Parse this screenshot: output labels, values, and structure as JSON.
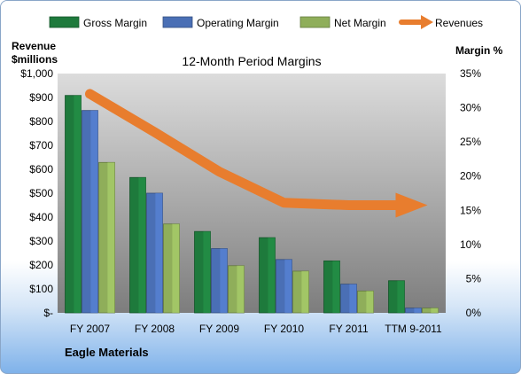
{
  "chart_data": {
    "type": "bar",
    "title": "12-Month Period Margins",
    "left_axis_label": [
      "Revenue",
      "$millions"
    ],
    "right_axis_label": "Margin %",
    "categories": [
      "FY 2007",
      "FY 2008",
      "FY 2009",
      "FY 2010",
      "FY 2011",
      "TTM 9-2011"
    ],
    "left_ticks": [
      "$-",
      "$100",
      "$200",
      "$300",
      "$400",
      "$500",
      "$600",
      "$700",
      "$800",
      "$900",
      "$1,000"
    ],
    "right_ticks": [
      "0%",
      "5%",
      "10%",
      "15%",
      "20%",
      "25%",
      "30%",
      "35%"
    ],
    "left_ylim": [
      0,
      1000
    ],
    "right_ylim": [
      0,
      35
    ],
    "grid": false,
    "legend_position": "top",
    "series": [
      {
        "name": "Gross Margin",
        "axis": "right",
        "kind": "bar",
        "color": "#1e7a3c",
        "values": [
          31.8,
          19.8,
          11.9,
          11.0,
          7.6,
          4.7
        ]
      },
      {
        "name": "Operating Margin",
        "axis": "right",
        "kind": "bar",
        "color": "#4a6fb5",
        "values": [
          29.6,
          17.5,
          9.4,
          7.8,
          4.2,
          0.7
        ]
      },
      {
        "name": "Net Margin",
        "axis": "right",
        "kind": "bar",
        "color": "#8fae5a",
        "values": [
          22.0,
          13.0,
          6.9,
          6.1,
          3.2,
          0.7
        ]
      },
      {
        "name": "Revenues",
        "axis": "left",
        "kind": "line",
        "color": "#e87d2e",
        "values": [
          915,
          755,
          590,
          460,
          450,
          450
        ]
      }
    ]
  },
  "footer_label": "Eagle Materials"
}
